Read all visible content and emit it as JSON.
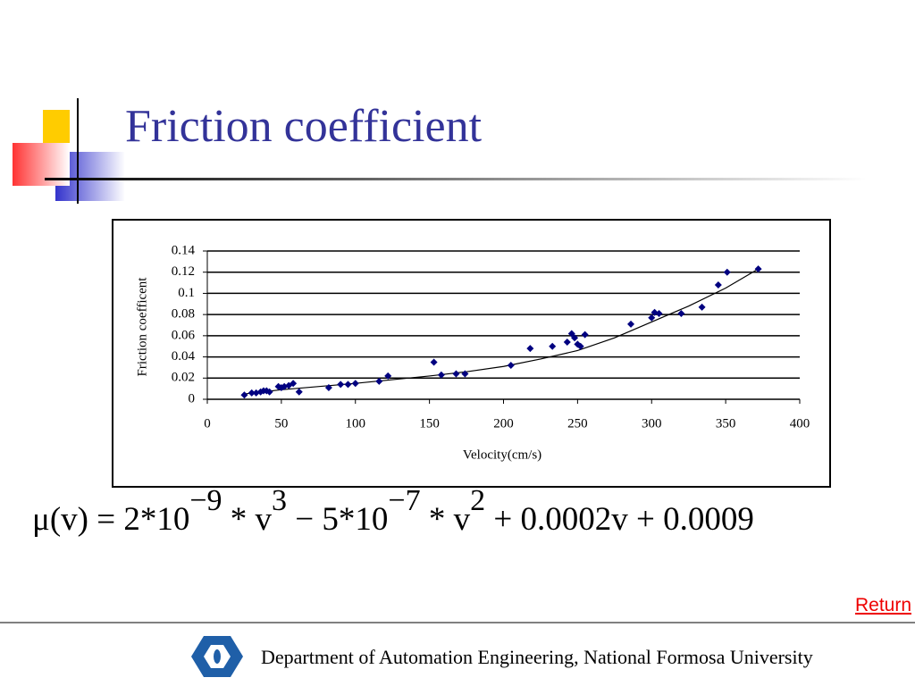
{
  "title": "Friction coefficient",
  "formula": [
    {
      "text": "μ(v) = 2*10",
      "sup": false
    },
    {
      "text": "−9",
      "sup": true
    },
    {
      "text": " * v",
      "sup": false
    },
    {
      "text": "3",
      "sup": true
    },
    {
      "text": " − 5*10",
      "sup": false
    },
    {
      "text": "−7",
      "sup": true
    },
    {
      "text": " * v",
      "sup": false
    },
    {
      "text": "2",
      "sup": true
    },
    {
      "text": " + 0.0002v + 0.0009",
      "sup": false
    }
  ],
  "return_link": "Return",
  "footer": "Department of Automation Engineering, National Formosa University",
  "chart_data": {
    "type": "scatter",
    "xlabel": "Velocity(cm/s)",
    "ylabel": "Friction coefficent",
    "color": "#000080",
    "x": [
      25,
      30,
      33,
      36,
      38,
      40,
      42,
      48,
      50,
      52,
      55,
      58,
      62,
      82,
      90,
      95,
      100,
      116,
      122,
      153,
      158,
      168,
      174,
      205,
      218,
      233,
      243,
      246,
      248,
      250,
      252,
      255,
      286,
      300,
      302,
      305,
      320,
      334,
      345,
      351,
      372
    ],
    "values": [
      0.004,
      0.006,
      0.006,
      0.007,
      0.008,
      0.008,
      0.007,
      0.012,
      0.011,
      0.012,
      0.013,
      0.015,
      0.007,
      0.011,
      0.014,
      0.014,
      0.015,
      0.017,
      0.022,
      0.035,
      0.023,
      0.024,
      0.024,
      0.032,
      0.048,
      0.05,
      0.054,
      0.062,
      0.058,
      0.052,
      0.05,
      0.061,
      0.071,
      0.077,
      0.082,
      0.081,
      0.081,
      0.087,
      0.108,
      0.12,
      0.123
    ],
    "trendline": {
      "color": "#000000",
      "x": [
        25,
        50,
        100,
        150,
        175,
        200,
        225,
        250,
        275,
        300,
        325,
        350,
        372
      ],
      "values": [
        0.005,
        0.009,
        0.015,
        0.022,
        0.026,
        0.031,
        0.038,
        0.046,
        0.058,
        0.073,
        0.088,
        0.105,
        0.123
      ]
    },
    "xlim": [
      0,
      400
    ],
    "xticks": [
      0,
      50,
      100,
      150,
      200,
      250,
      300,
      350,
      400
    ],
    "ylim": [
      0,
      0.14
    ],
    "yticks": [
      0,
      0.02,
      0.04,
      0.06,
      0.08,
      0.1,
      0.12,
      0.14
    ],
    "grid": true
  }
}
